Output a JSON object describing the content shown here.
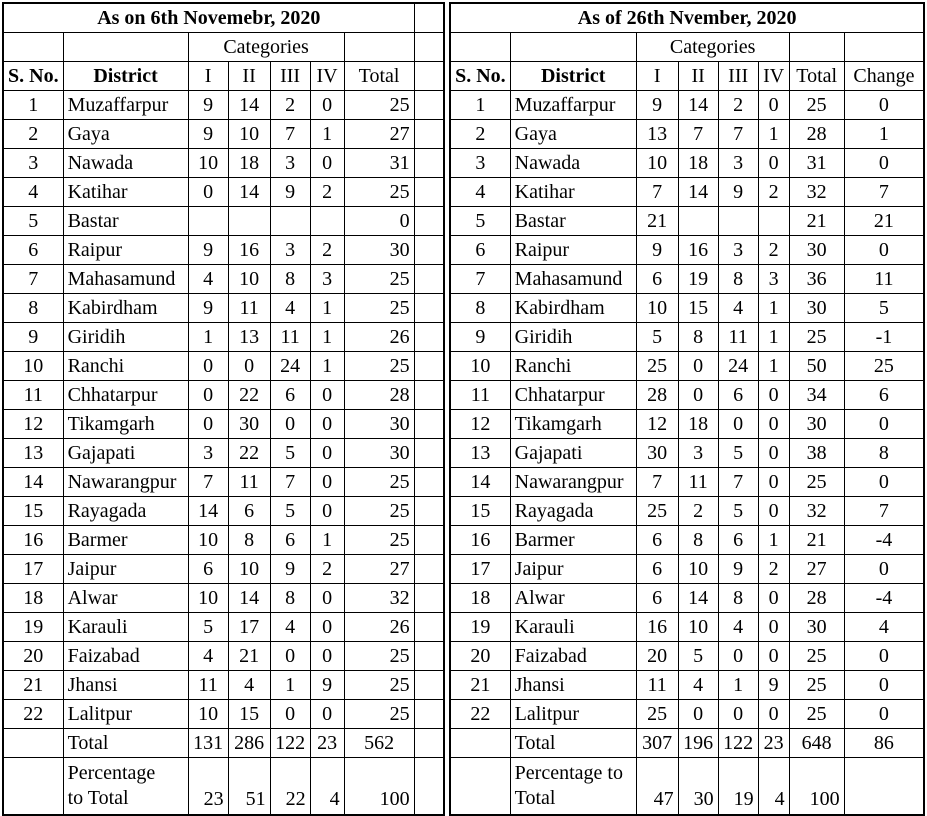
{
  "left_table": {
    "title": "As on 6th Novemebr, 2020",
    "categories_label": "Categories",
    "headers": {
      "sno": "S. No.",
      "district": "District",
      "c1": "I",
      "c2": "II",
      "c3": "III",
      "c4": "IV",
      "total": "Total"
    },
    "rows": [
      {
        "sno": "1",
        "district": "Muzaffarpur",
        "c1": "9",
        "c2": "14",
        "c3": "2",
        "c4": "0",
        "total": "25"
      },
      {
        "sno": "2",
        "district": "Gaya",
        "c1": "9",
        "c2": "10",
        "c3": "7",
        "c4": "1",
        "total": "27"
      },
      {
        "sno": "3",
        "district": "Nawada",
        "c1": "10",
        "c2": "18",
        "c3": "3",
        "c4": "0",
        "total": "31"
      },
      {
        "sno": "4",
        "district": "Katihar",
        "c1": "0",
        "c2": "14",
        "c3": "9",
        "c4": "2",
        "total": "25"
      },
      {
        "sno": "5",
        "district": "Bastar",
        "c1": "",
        "c2": "",
        "c3": "",
        "c4": "",
        "total": "0"
      },
      {
        "sno": "6",
        "district": "Raipur",
        "c1": "9",
        "c2": "16",
        "c3": "3",
        "c4": "2",
        "total": "30"
      },
      {
        "sno": "7",
        "district": "Mahasamund",
        "c1": "4",
        "c2": "10",
        "c3": "8",
        "c4": "3",
        "total": "25"
      },
      {
        "sno": "8",
        "district": "Kabirdham",
        "c1": "9",
        "c2": "11",
        "c3": "4",
        "c4": "1",
        "total": "25"
      },
      {
        "sno": "9",
        "district": "Giridih",
        "c1": "1",
        "c2": "13",
        "c3": "11",
        "c4": "1",
        "total": "26"
      },
      {
        "sno": "10",
        "district": "Ranchi",
        "c1": "0",
        "c2": "0",
        "c3": "24",
        "c4": "1",
        "total": "25"
      },
      {
        "sno": "11",
        "district": "Chhatarpur",
        "c1": "0",
        "c2": "22",
        "c3": "6",
        "c4": "0",
        "total": "28"
      },
      {
        "sno": "12",
        "district": "Tikamgarh",
        "c1": "0",
        "c2": "30",
        "c3": "0",
        "c4": "0",
        "total": "30"
      },
      {
        "sno": "13",
        "district": "Gajapati",
        "c1": "3",
        "c2": "22",
        "c3": "5",
        "c4": "0",
        "total": "30"
      },
      {
        "sno": "14",
        "district": "Nawarangpur",
        "c1": "7",
        "c2": "11",
        "c3": "7",
        "c4": "0",
        "total": "25"
      },
      {
        "sno": "15",
        "district": "Rayagada",
        "c1": "14",
        "c2": "6",
        "c3": "5",
        "c4": "0",
        "total": "25"
      },
      {
        "sno": "16",
        "district": "Barmer",
        "c1": "10",
        "c2": "8",
        "c3": "6",
        "c4": "1",
        "total": "25"
      },
      {
        "sno": "17",
        "district": "Jaipur",
        "c1": "6",
        "c2": "10",
        "c3": "9",
        "c4": "2",
        "total": "27"
      },
      {
        "sno": "18",
        "district": "Alwar",
        "c1": "10",
        "c2": "14",
        "c3": "8",
        "c4": "0",
        "total": "32"
      },
      {
        "sno": "19",
        "district": "Karauli",
        "c1": "5",
        "c2": "17",
        "c3": "4",
        "c4": "0",
        "total": "26"
      },
      {
        "sno": "20",
        "district": "Faizabad",
        "c1": "4",
        "c2": "21",
        "c3": "0",
        "c4": "0",
        "total": "25"
      },
      {
        "sno": "21",
        "district": "Jhansi",
        "c1": "11",
        "c2": "4",
        "c3": "1",
        "c4": "9",
        "total": "25"
      },
      {
        "sno": "22",
        "district": "Lalitpur",
        "c1": "10",
        "c2": "15",
        "c3": "0",
        "c4": "0",
        "total": "25"
      }
    ],
    "total_row": {
      "label": "Total",
      "c1": "131",
      "c2": "286",
      "c3": "122",
      "c4": "23",
      "total": "562"
    },
    "percentage_row": {
      "line1": "Percentage",
      "line2": "to Total",
      "c1": "23",
      "c2": "51",
      "c3": "22",
      "c4": "4",
      "total": "100"
    }
  },
  "right_table": {
    "title": "As of 26th Nvember, 2020",
    "categories_label": "Categories",
    "headers": {
      "sno": "S. No.",
      "district": "District",
      "c1": "I",
      "c2": "II",
      "c3": "III",
      "c4": "IV",
      "total": "Total",
      "change": "Change"
    },
    "rows": [
      {
        "sno": "1",
        "district": "Muzaffarpur",
        "c1": "9",
        "c2": "14",
        "c3": "2",
        "c4": "0",
        "total": "25",
        "change": "0"
      },
      {
        "sno": "2",
        "district": "Gaya",
        "c1": "13",
        "c2": "7",
        "c3": "7",
        "c4": "1",
        "total": "28",
        "change": "1"
      },
      {
        "sno": "3",
        "district": "Nawada",
        "c1": "10",
        "c2": "18",
        "c3": "3",
        "c4": "0",
        "total": "31",
        "change": "0"
      },
      {
        "sno": "4",
        "district": "Katihar",
        "c1": "7",
        "c2": "14",
        "c3": "9",
        "c4": "2",
        "total": "32",
        "change": "7"
      },
      {
        "sno": "5",
        "district": "Bastar",
        "c1": "21",
        "c2": "",
        "c3": "",
        "c4": "",
        "total": "21",
        "change": "21"
      },
      {
        "sno": "6",
        "district": "Raipur",
        "c1": "9",
        "c2": "16",
        "c3": "3",
        "c4": "2",
        "total": "30",
        "change": "0"
      },
      {
        "sno": "7",
        "district": "Mahasamund",
        "c1": "6",
        "c2": "19",
        "c3": "8",
        "c4": "3",
        "total": "36",
        "change": "11"
      },
      {
        "sno": "8",
        "district": "Kabirdham",
        "c1": "10",
        "c2": "15",
        "c3": "4",
        "c4": "1",
        "total": "30",
        "change": "5"
      },
      {
        "sno": "9",
        "district": "Giridih",
        "c1": "5",
        "c2": "8",
        "c3": "11",
        "c4": "1",
        "total": "25",
        "change": "-1"
      },
      {
        "sno": "10",
        "district": "Ranchi",
        "c1": "25",
        "c2": "0",
        "c3": "24",
        "c4": "1",
        "total": "50",
        "change": "25"
      },
      {
        "sno": "11",
        "district": "Chhatarpur",
        "c1": "28",
        "c2": "0",
        "c3": "6",
        "c4": "0",
        "total": "34",
        "change": "6"
      },
      {
        "sno": "12",
        "district": "Tikamgarh",
        "c1": "12",
        "c2": "18",
        "c3": "0",
        "c4": "0",
        "total": "30",
        "change": "0"
      },
      {
        "sno": "13",
        "district": "Gajapati",
        "c1": "30",
        "c2": "3",
        "c3": "5",
        "c4": "0",
        "total": "38",
        "change": "8"
      },
      {
        "sno": "14",
        "district": "Nawarangpur",
        "c1": "7",
        "c2": "11",
        "c3": "7",
        "c4": "0",
        "total": "25",
        "change": "0"
      },
      {
        "sno": "15",
        "district": "Rayagada",
        "c1": "25",
        "c2": "2",
        "c3": "5",
        "c4": "0",
        "total": "32",
        "change": "7"
      },
      {
        "sno": "16",
        "district": "Barmer",
        "c1": "6",
        "c2": "8",
        "c3": "6",
        "c4": "1",
        "total": "21",
        "change": "-4"
      },
      {
        "sno": "17",
        "district": "Jaipur",
        "c1": "6",
        "c2": "10",
        "c3": "9",
        "c4": "2",
        "total": "27",
        "change": "0"
      },
      {
        "sno": "18",
        "district": "Alwar",
        "c1": "6",
        "c2": "14",
        "c3": "8",
        "c4": "0",
        "total": "28",
        "change": "-4"
      },
      {
        "sno": "19",
        "district": "Karauli",
        "c1": "16",
        "c2": "10",
        "c3": "4",
        "c4": "0",
        "total": "30",
        "change": "4"
      },
      {
        "sno": "20",
        "district": "Faizabad",
        "c1": "20",
        "c2": "5",
        "c3": "0",
        "c4": "0",
        "total": "25",
        "change": "0"
      },
      {
        "sno": "21",
        "district": "Jhansi",
        "c1": "11",
        "c2": "4",
        "c3": "1",
        "c4": "9",
        "total": "25",
        "change": "0"
      },
      {
        "sno": "22",
        "district": "Lalitpur",
        "c1": "25",
        "c2": "0",
        "c3": "0",
        "c4": "0",
        "total": "25",
        "change": "0"
      }
    ],
    "total_row": {
      "label": "Total",
      "c1": "307",
      "c2": "196",
      "c3": "122",
      "c4": "23",
      "total": "648",
      "change": "86"
    },
    "percentage_row": {
      "line1": "Percentage to",
      "line2": "Total",
      "c1": "47",
      "c2": "30",
      "c3": "19",
      "c4": "4",
      "total": "100",
      "change": ""
    }
  }
}
